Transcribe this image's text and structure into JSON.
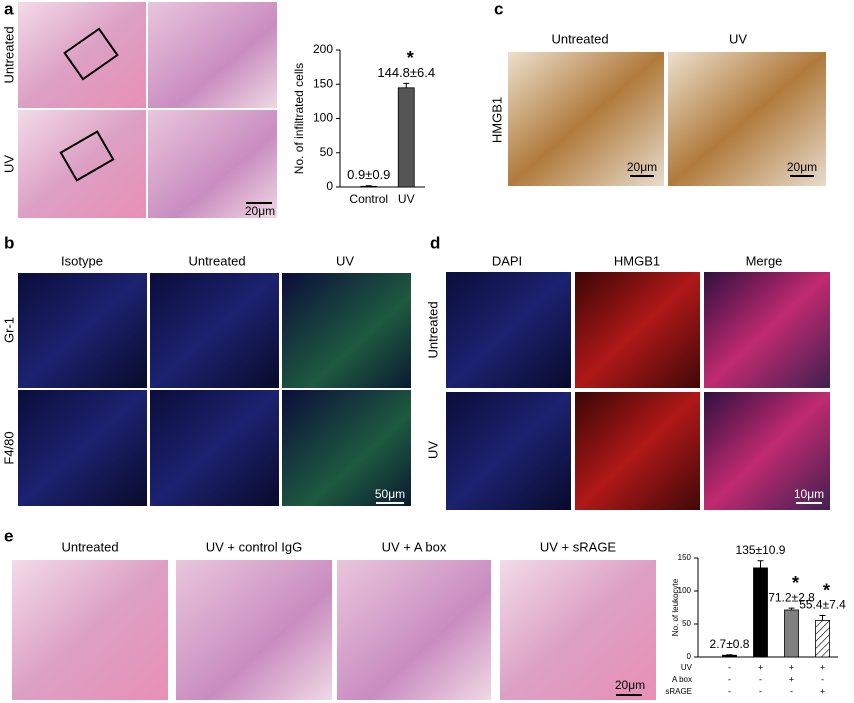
{
  "panels": [
    {
      "label": "a",
      "row_labels": [
        "Untreated",
        "UV"
      ],
      "scale_bar": "20μm"
    },
    {
      "label": "b",
      "column_titles": [
        "Isotype",
        "Untreated",
        "UV"
      ],
      "row_labels": [
        "Gr-1",
        "F4/80"
      ],
      "scale_bar": "50μm"
    },
    {
      "label": "c",
      "column_titles": [
        "Untreated",
        "UV"
      ],
      "row_labels": [
        "HMGB1"
      ],
      "scale_bars": [
        "20μm",
        "20μm"
      ]
    },
    {
      "label": "d",
      "column_titles": [
        "DAPI",
        "HMGB1",
        "Merge"
      ],
      "row_labels": [
        "Untreated",
        "UV"
      ],
      "scale_bar": "10μm"
    },
    {
      "label": "e",
      "column_titles": [
        "Untreated",
        "UV + control IgG",
        "UV + A box",
        "UV + sRAGE"
      ],
      "scale_bar": "20μm"
    }
  ],
  "chart_data": [
    {
      "type": "bar",
      "y_label": "No. of infiltrated cells",
      "categories": [
        "Control",
        "UV"
      ],
      "values": [
        0.9,
        144.8
      ],
      "errors": [
        0.9,
        6.4
      ],
      "value_labels": [
        "0.9±0.9",
        "144.8±6.4"
      ],
      "colors": [
        "#444444",
        "#555555"
      ],
      "ylim": [
        0,
        200
      ],
      "yticks": [
        0,
        50,
        100,
        150,
        200
      ],
      "annotations": [
        {
          "category": 1,
          "text": "*"
        }
      ]
    },
    {
      "type": "bar",
      "y_label": "No. of leukocyte",
      "categories": [
        null,
        null,
        null,
        null
      ],
      "values": [
        2.7,
        135,
        71.2,
        55.4
      ],
      "errors": [
        0.8,
        10.9,
        2.8,
        7.4
      ],
      "value_labels": [
        "2.7±0.8",
        "135±10.9",
        "71.2±2.8",
        "55.4±7.4"
      ],
      "colors": [
        "#000000",
        "#000000",
        "#808080",
        "hatch"
      ],
      "ylim": [
        0,
        150
      ],
      "yticks": [
        0,
        50,
        100,
        150
      ],
      "treatments": [
        {
          "name": "UV",
          "signs": [
            "-",
            "+",
            "+",
            "+"
          ]
        },
        {
          "name": "A box",
          "signs": [
            "-",
            "-",
            "+",
            "-"
          ]
        },
        {
          "name": "sRAGE",
          "signs": [
            "-",
            "-",
            "-",
            "+"
          ]
        }
      ],
      "annotations": [
        {
          "category": 2,
          "text": "*"
        },
        {
          "category": 3,
          "text": "*"
        }
      ]
    }
  ]
}
